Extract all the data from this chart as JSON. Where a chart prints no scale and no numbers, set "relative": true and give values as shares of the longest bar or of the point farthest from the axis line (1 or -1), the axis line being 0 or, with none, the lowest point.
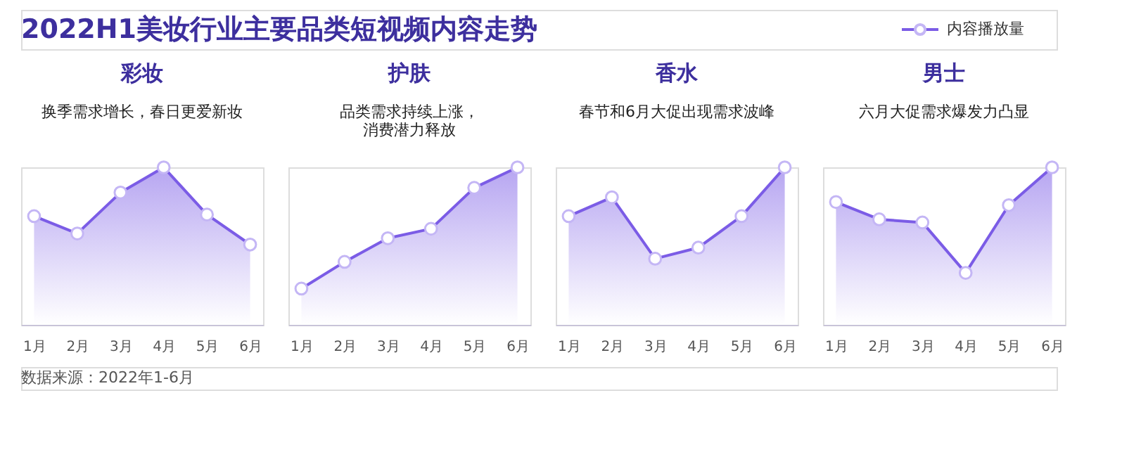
{
  "chart_data": [
    {
      "type": "other",
      "title": "2022H1美妆行业主要品类短视频内容走势",
      "annotations": [
        "数据来源：2022年1-6月"
      ]
    },
    {
      "type": "area",
      "title": "彩妆",
      "subtitle": "换季需求增长，春日更爱新妆",
      "relative": true,
      "marker": "circle",
      "categories": [
        "1月",
        "2月",
        "3月",
        "4月",
        "5月",
        "6月"
      ],
      "series": [
        {
          "color": "#7b5ce6",
          "values": [
            0.69,
            0.58,
            0.84,
            1,
            0.7,
            0.51
          ]
        }
      ]
    },
    {
      "type": "area",
      "title": "护肤",
      "subtitle": "品类需求持续上涨，消费潜力释放",
      "relative": true,
      "marker": "circle",
      "categories": [
        "1月",
        "2月",
        "3月",
        "4月",
        "5月",
        "6月"
      ],
      "series": [
        {
          "color": "#7b5ce6",
          "values": [
            0.23,
            0.4,
            0.55,
            0.61,
            0.87,
            1
          ]
        }
      ]
    },
    {
      "type": "area",
      "title": "香水",
      "subtitle": "春节和6月大促出现需求波峰",
      "relative": true,
      "marker": "circle",
      "categories": [
        "1月",
        "2月",
        "3月",
        "4月",
        "5月",
        "6月"
      ],
      "series": [
        {
          "color": "#7b5ce6",
          "values": [
            0.69,
            0.81,
            0.42,
            0.49,
            0.69,
            1
          ]
        }
      ]
    },
    {
      "type": "area",
      "title": "男士",
      "subtitle": "六月大促需求爆发力凸显",
      "relative": true,
      "marker": "circle",
      "legend": "top right",
      "categories": [
        "1月",
        "2月",
        "3月",
        "4月",
        "5月",
        "6月"
      ],
      "series": [
        {
          "name": "内容播放量",
          "color": "#7b5ce6",
          "values": [
            0.78,
            0.67,
            0.65,
            0.33,
            0.76,
            1
          ]
        }
      ]
    }
  ]
}
